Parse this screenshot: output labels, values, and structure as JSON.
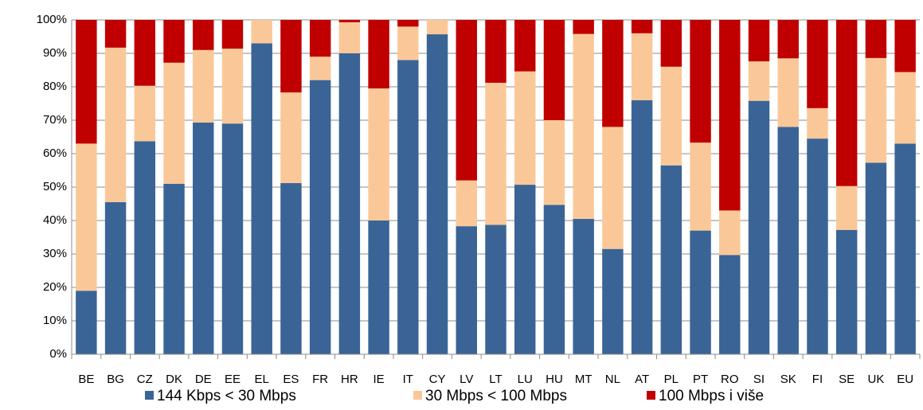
{
  "chart_data": {
    "type": "stacked_bar",
    "categories": [
      "BE",
      "BG",
      "CZ",
      "DK",
      "DE",
      "EE",
      "EL",
      "ES",
      "FR",
      "HR",
      "IE",
      "IT",
      "CY",
      "LV",
      "LT",
      "LU",
      "HU",
      "MT",
      "NL",
      "AT",
      "PL",
      "PT",
      "RO",
      "SI",
      "SK",
      "FI",
      "SE",
      "UK",
      "EU"
    ],
    "series": [
      {
        "name": "144 Kbps < 30 Mbps",
        "color": "#3a6496",
        "values": [
          19,
          45.5,
          63.7,
          51,
          69.3,
          69,
          93,
          51.2,
          82,
          90,
          40,
          88,
          95.7,
          38.3,
          38.7,
          50.7,
          44.7,
          40.5,
          31.5,
          76,
          56.5,
          37,
          29.7,
          75.8,
          68,
          64.5,
          37.2,
          57.3,
          63
        ]
      },
      {
        "name": "30 Mbps < 100 Mbps",
        "color": "#fac898",
        "values": [
          44,
          46.2,
          16.6,
          36.2,
          21.7,
          22.4,
          7,
          27.1,
          7,
          9.3,
          39.5,
          10,
          4.3,
          13.7,
          42.5,
          33.9,
          25.3,
          55.3,
          36.5,
          20,
          29.5,
          26.3,
          13.3,
          11.8,
          20.5,
          9.1,
          13.1,
          31.3,
          21.4
        ]
      },
      {
        "name": "100 Mbps i više",
        "color": "#c00000",
        "values": [
          37,
          8.3,
          19.7,
          12.8,
          9,
          8.6,
          0,
          21.7,
          11,
          0.7,
          20.5,
          2,
          0,
          48,
          18.8,
          15.4,
          30,
          4.2,
          32,
          4,
          14,
          36.7,
          57,
          12.4,
          11.5,
          26.4,
          49.7,
          11.4,
          15.6
        ]
      }
    ],
    "ylim": [
      0,
      100
    ],
    "yticks": [
      {
        "value": 0,
        "label": "0%"
      },
      {
        "value": 10,
        "label": "10%"
      },
      {
        "value": 20,
        "label": "20%"
      },
      {
        "value": 30,
        "label": "30%"
      },
      {
        "value": 40,
        "label": "40%"
      },
      {
        "value": 50,
        "label": "50%"
      },
      {
        "value": 60,
        "label": "60%"
      },
      {
        "value": 70,
        "label": "70%"
      },
      {
        "value": 80,
        "label": "80%"
      },
      {
        "value": 90,
        "label": "90%"
      },
      {
        "value": 100,
        "label": "100%"
      }
    ],
    "grid": true,
    "legend": "bottom"
  }
}
